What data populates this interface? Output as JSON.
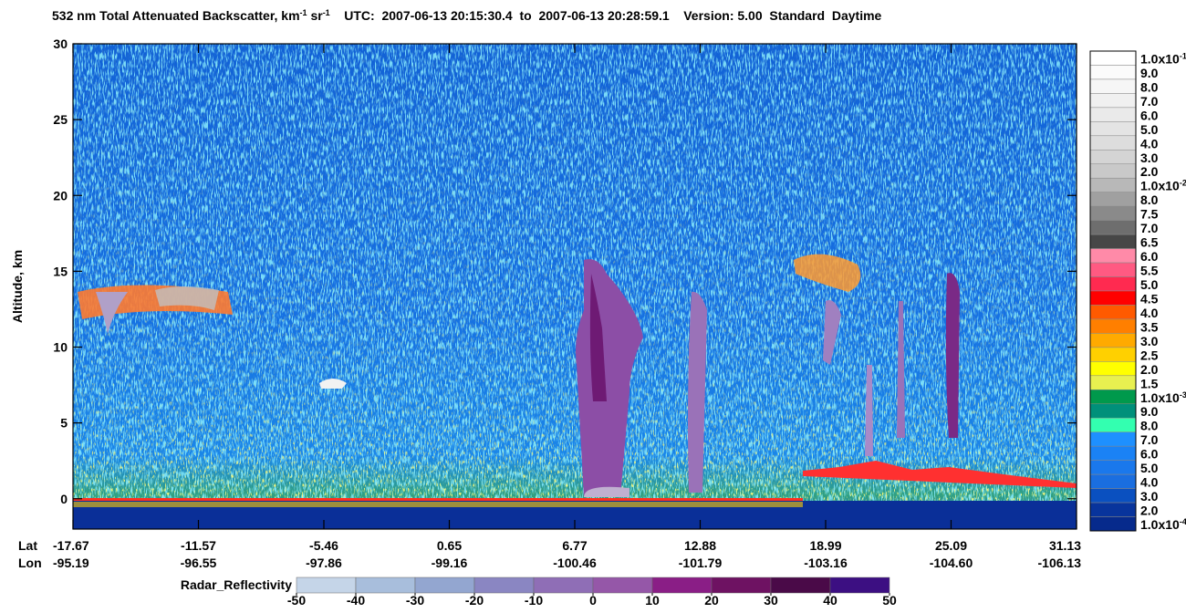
{
  "chart_data": {
    "type": "heatmap",
    "title_parts": [
      {
        "text": "532 nm Total Attenuated Backscatter, km"
      },
      {
        "text": "-1",
        "sup": true
      },
      {
        "text": " sr"
      },
      {
        "text": "-1",
        "sup": true
      },
      {
        "text": "    UTC:  2007-06-13 20:15:30.4  to  2007-06-13 20:28:59.1    Version: 5.00  Standard  Daytime"
      }
    ],
    "y_label": "Altitude, km",
    "ylim": [
      -2,
      30
    ],
    "yticks": [
      0,
      5,
      10,
      15,
      20,
      25,
      30
    ],
    "x_rows": [
      "Lat",
      "Lon"
    ],
    "lat": [
      -17.67,
      -11.57,
      -5.46,
      0.65,
      6.77,
      12.88,
      18.99,
      25.09,
      31.13
    ],
    "lon": [
      -95.19,
      -96.55,
      -97.86,
      -99.16,
      -100.46,
      -101.79,
      -103.16,
      {
        "value": -104.6,
        "label": "-104.60"
      },
      -106.13
    ],
    "colorbar": [
      {
        "label": "1.0x10",
        "sup": "-1",
        "color": "#ffffff"
      },
      {
        "label": "9.0",
        "color": "#fbfbfb"
      },
      {
        "label": "8.0",
        "color": "#f6f6f6"
      },
      {
        "label": "7.0",
        "color": "#f0f0f0"
      },
      {
        "label": "6.0",
        "color": "#eaeaea"
      },
      {
        "label": "5.0",
        "color": "#e4e4e4"
      },
      {
        "label": "4.0",
        "color": "#dddddd"
      },
      {
        "label": "3.0",
        "color": "#d4d4d4"
      },
      {
        "label": "2.0",
        "color": "#c9c9c9"
      },
      {
        "label": "1.0x10",
        "sup": "-2",
        "color": "#b8b8b8"
      },
      {
        "label": "8.0",
        "color": "#a0a0a0"
      },
      {
        "label": "7.5",
        "color": "#8a8a8a"
      },
      {
        "label": "7.0",
        "color": "#6e6e6e"
      },
      {
        "label": "6.5",
        "color": "#474747"
      },
      {
        "label": "6.0",
        "color": "#ff8aa8"
      },
      {
        "label": "5.5",
        "color": "#ff5a82"
      },
      {
        "label": "5.0",
        "color": "#ff2a50"
      },
      {
        "label": "4.5",
        "color": "#ff0000"
      },
      {
        "label": "4.0",
        "color": "#ff5a00"
      },
      {
        "label": "3.5",
        "color": "#ff7f00"
      },
      {
        "label": "3.0",
        "color": "#ffaa00"
      },
      {
        "label": "2.5",
        "color": "#ffd000"
      },
      {
        "label": "2.0",
        "color": "#ffff00"
      },
      {
        "label": "1.5",
        "color": "#e8f050"
      },
      {
        "label": "1.0x10",
        "sup": "-3",
        "color": "#00994c"
      },
      {
        "label": "9.0",
        "color": "#00907a"
      },
      {
        "label": "8.0",
        "color": "#33ffb0"
      },
      {
        "label": "7.0",
        "color": "#1e90ff"
      },
      {
        "label": "6.0",
        "color": "#1a82f5"
      },
      {
        "label": "5.0",
        "color": "#1a78ec"
      },
      {
        "label": "4.0",
        "color": "#1a6ee0"
      },
      {
        "label": "3.0",
        "color": "#0a50c0"
      },
      {
        "label": "2.0",
        "color": "#08349c"
      },
      {
        "label": "1.0x10",
        "sup": "-4",
        "color": "#062a8c"
      }
    ],
    "radar": {
      "label": "Radar_Reflectivity",
      "ticks": [
        -50,
        -40,
        -30,
        -20,
        -10,
        0,
        10,
        20,
        30,
        40,
        50
      ],
      "colors": [
        "#c5d5e8",
        "#a8bedc",
        "#93a6d0",
        "#8a86c2",
        "#8f6eb6",
        "#9557a8",
        "#8a1e86",
        "#6e1262",
        "#4a0a48",
        "#3c0f82"
      ]
    }
  }
}
